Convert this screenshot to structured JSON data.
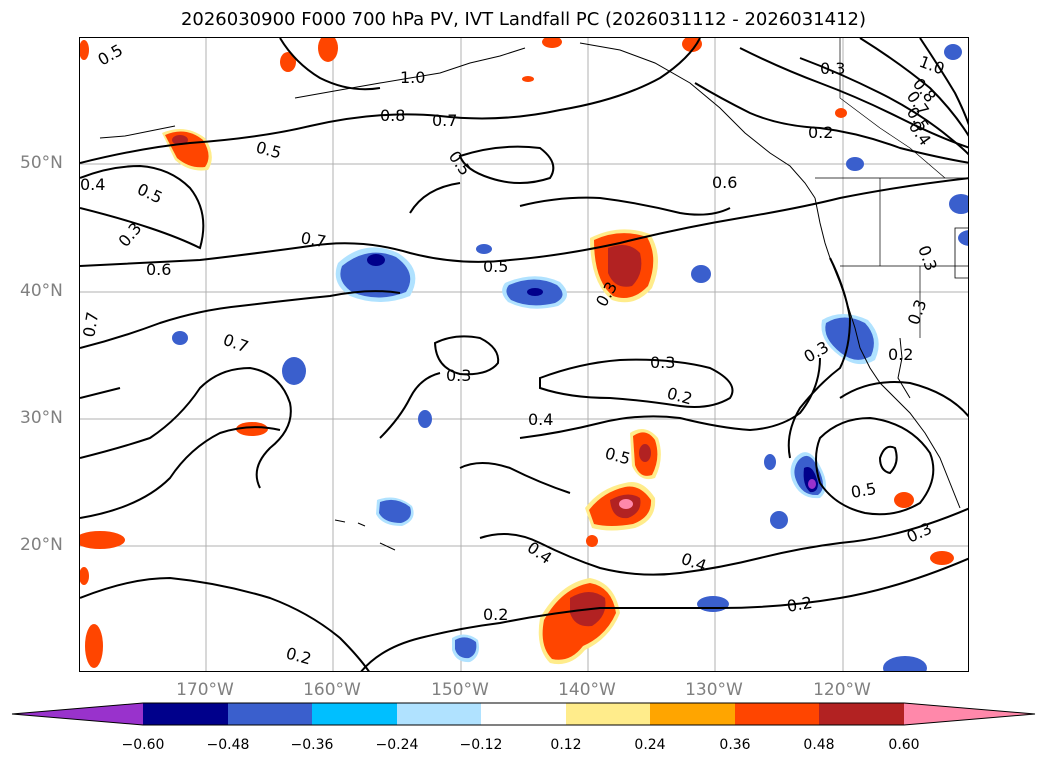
{
  "title": "2026030900 F000 700 hPa PV, IVT Landfall PC (2026031112 - 2026031412)",
  "map": {
    "lat_labels": [
      "50°N",
      "40°N",
      "30°N",
      "20°N"
    ],
    "lon_labels": [
      "170°W",
      "160°W",
      "150°W",
      "140°W",
      "130°W",
      "120°W"
    ],
    "contour_labels": [
      {
        "text": "0.5"
      },
      {
        "text": "1.0"
      },
      {
        "text": "0.8"
      },
      {
        "text": "0.7"
      },
      {
        "text": "0.5"
      },
      {
        "text": "0.5"
      },
      {
        "text": "0.5"
      },
      {
        "text": "0.4"
      },
      {
        "text": "0.3"
      },
      {
        "text": "0.6"
      },
      {
        "text": "0.7"
      },
      {
        "text": "0.5"
      },
      {
        "text": "0.3"
      },
      {
        "text": "0.6"
      },
      {
        "text": "0.3"
      },
      {
        "text": "0.2"
      },
      {
        "text": "1.0"
      },
      {
        "text": "0.8"
      },
      {
        "text": "0.7"
      },
      {
        "text": "0.5"
      },
      {
        "text": "0.4"
      },
      {
        "text": "0.3"
      },
      {
        "text": "0.7"
      },
      {
        "text": "0.7"
      },
      {
        "text": "0.3"
      },
      {
        "text": "0.3"
      },
      {
        "text": "0.2"
      },
      {
        "text": "0.4"
      },
      {
        "text": "0.3"
      },
      {
        "text": "0.3"
      },
      {
        "text": "0.2"
      },
      {
        "text": "0.5"
      },
      {
        "text": "0.5"
      },
      {
        "text": "0.4"
      },
      {
        "text": "0.4"
      },
      {
        "text": "0.2"
      },
      {
        "text": "0.2"
      },
      {
        "text": "0.3"
      },
      {
        "text": "0.2"
      }
    ]
  },
  "colorbar": {
    "ticks": [
      "−0.60",
      "−0.48",
      "−0.36",
      "−0.24",
      "−0.12",
      "0.12",
      "0.24",
      "0.36",
      "0.48",
      "0.60"
    ],
    "colors": [
      "#9932cc",
      "#00008b",
      "#3a5fcd",
      "#00bfff",
      "#b0e2ff",
      "#ffffff",
      "#ffec8b",
      "#ffa500",
      "#ff4500",
      "#b22222",
      "#ff88aa"
    ]
  }
}
